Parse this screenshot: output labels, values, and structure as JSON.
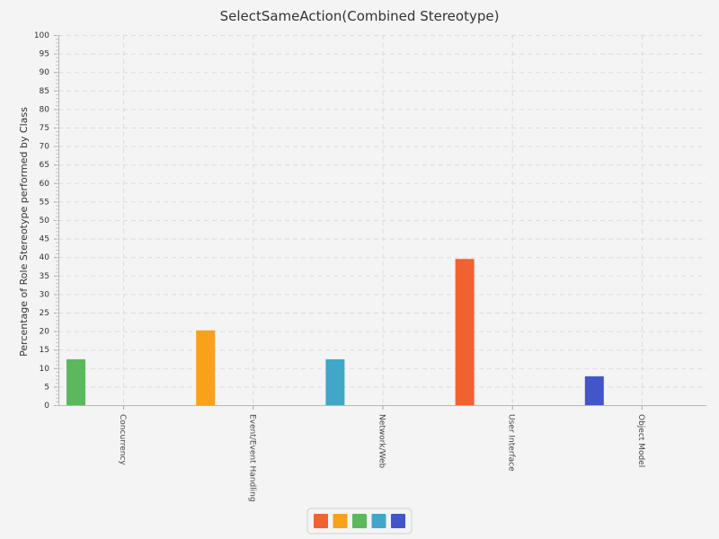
{
  "chart_data": {
    "type": "bar",
    "title": "SelectSameAction(Combined Stereotype)",
    "xlabel": "",
    "ylabel": "Percentage of Role Stereotype performed by Class",
    "ylim": [
      0,
      100
    ],
    "ytick_step": 5,
    "grid": true,
    "legend_position": "bottom-center",
    "categories": [
      "Concurrency",
      "Event/Event Handling",
      "Network/Web",
      "User Interface",
      "Object Model"
    ],
    "series": [
      {
        "name": "",
        "color": "#f26130",
        "values": [
          0,
          0,
          0,
          39.5,
          0
        ]
      },
      {
        "name": "",
        "color": "#f9a11b",
        "values": [
          0,
          20.2,
          0,
          0,
          0
        ]
      },
      {
        "name": "",
        "color": "#5cb85c",
        "values": [
          12.4,
          0,
          0,
          0,
          0
        ]
      },
      {
        "name": "",
        "color": "#40a7c9",
        "values": [
          0,
          0,
          12.4,
          0,
          0
        ]
      },
      {
        "name": "",
        "color": "#4256c9",
        "values": [
          0,
          0,
          0,
          0,
          7.8
        ]
      }
    ],
    "bar_order": [
      2,
      1,
      3,
      0,
      4
    ]
  }
}
